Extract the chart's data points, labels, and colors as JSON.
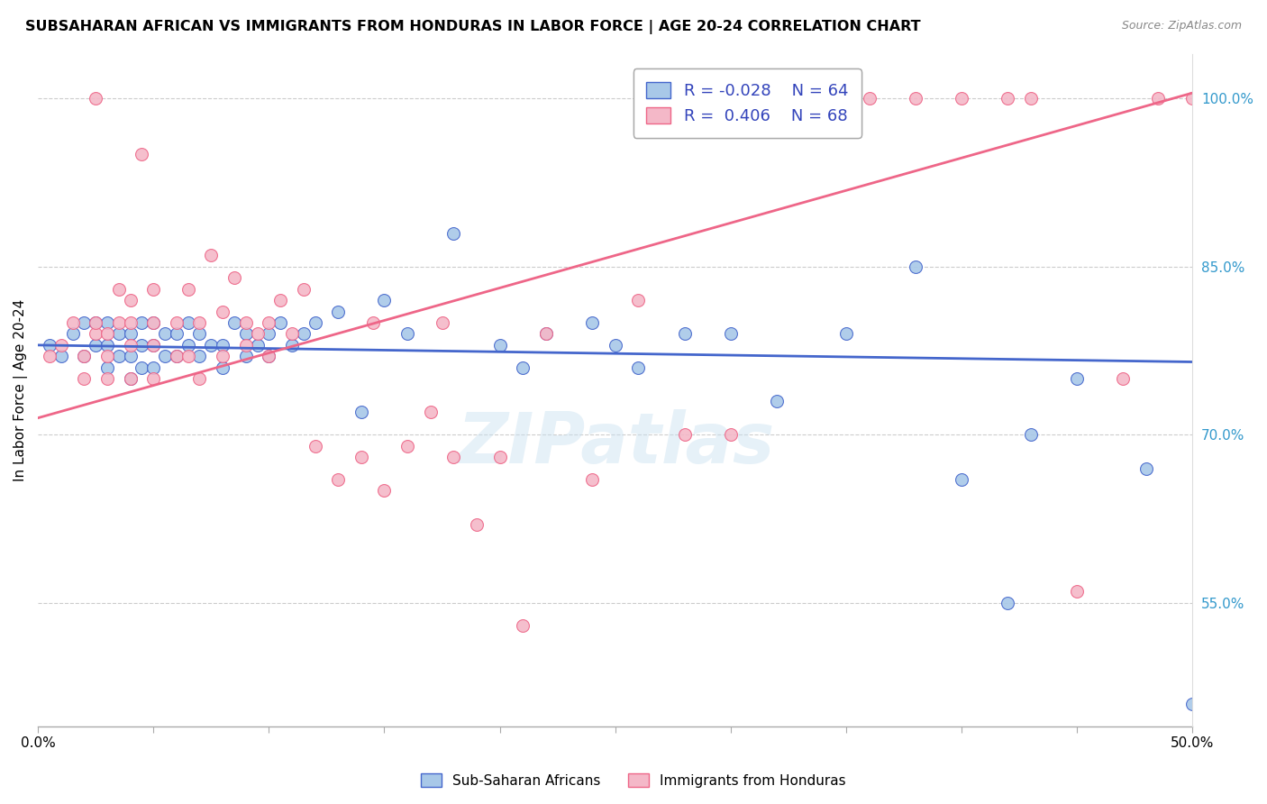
{
  "title": "SUBSAHARAN AFRICAN VS IMMIGRANTS FROM HONDURAS IN LABOR FORCE | AGE 20-24 CORRELATION CHART",
  "source": "Source: ZipAtlas.com",
  "ylabel": "In Labor Force | Age 20-24",
  "xlim": [
    0.0,
    0.5
  ],
  "ylim": [
    0.44,
    1.04
  ],
  "blue_R": "-0.028",
  "blue_N": "64",
  "pink_R": "0.406",
  "pink_N": "68",
  "blue_color": "#a8c8e8",
  "pink_color": "#f4b8c8",
  "blue_line_color": "#4466cc",
  "pink_line_color": "#ee6688",
  "legend_label_blue": "Sub-Saharan Africans",
  "legend_label_pink": "Immigrants from Honduras",
  "watermark": "ZIPatlas",
  "blue_scatter_x": [
    0.005,
    0.01,
    0.015,
    0.02,
    0.02,
    0.025,
    0.025,
    0.03,
    0.03,
    0.03,
    0.035,
    0.035,
    0.04,
    0.04,
    0.04,
    0.045,
    0.045,
    0.045,
    0.05,
    0.05,
    0.05,
    0.055,
    0.055,
    0.06,
    0.06,
    0.065,
    0.065,
    0.07,
    0.07,
    0.075,
    0.08,
    0.08,
    0.085,
    0.09,
    0.09,
    0.095,
    0.1,
    0.1,
    0.105,
    0.11,
    0.115,
    0.12,
    0.13,
    0.14,
    0.15,
    0.16,
    0.18,
    0.2,
    0.21,
    0.22,
    0.24,
    0.25,
    0.26,
    0.28,
    0.3,
    0.32,
    0.35,
    0.38,
    0.4,
    0.42,
    0.43,
    0.45,
    0.48,
    0.5
  ],
  "blue_scatter_y": [
    0.78,
    0.77,
    0.79,
    0.8,
    0.77,
    0.78,
    0.8,
    0.76,
    0.78,
    0.8,
    0.77,
    0.79,
    0.75,
    0.77,
    0.79,
    0.76,
    0.78,
    0.8,
    0.76,
    0.78,
    0.8,
    0.77,
    0.79,
    0.77,
    0.79,
    0.78,
    0.8,
    0.77,
    0.79,
    0.78,
    0.76,
    0.78,
    0.8,
    0.77,
    0.79,
    0.78,
    0.77,
    0.79,
    0.8,
    0.78,
    0.79,
    0.8,
    0.81,
    0.72,
    0.82,
    0.79,
    0.88,
    0.78,
    0.76,
    0.79,
    0.8,
    0.78,
    0.76,
    0.79,
    0.79,
    0.73,
    0.79,
    0.85,
    0.66,
    0.55,
    0.7,
    0.75,
    0.67,
    0.46
  ],
  "pink_scatter_x": [
    0.005,
    0.01,
    0.015,
    0.02,
    0.02,
    0.025,
    0.025,
    0.025,
    0.03,
    0.03,
    0.03,
    0.035,
    0.035,
    0.04,
    0.04,
    0.04,
    0.04,
    0.045,
    0.05,
    0.05,
    0.05,
    0.05,
    0.06,
    0.06,
    0.065,
    0.065,
    0.07,
    0.07,
    0.075,
    0.08,
    0.08,
    0.085,
    0.09,
    0.09,
    0.095,
    0.1,
    0.1,
    0.105,
    0.11,
    0.115,
    0.12,
    0.13,
    0.14,
    0.145,
    0.15,
    0.16,
    0.17,
    0.175,
    0.18,
    0.19,
    0.2,
    0.21,
    0.22,
    0.24,
    0.26,
    0.28,
    0.3,
    0.315,
    0.33,
    0.36,
    0.38,
    0.4,
    0.42,
    0.43,
    0.45,
    0.47,
    0.485,
    0.5
  ],
  "pink_scatter_y": [
    0.77,
    0.78,
    0.8,
    0.75,
    0.77,
    0.79,
    0.8,
    1.0,
    0.75,
    0.77,
    0.79,
    0.8,
    0.83,
    0.75,
    0.78,
    0.8,
    0.82,
    0.95,
    0.75,
    0.78,
    0.8,
    0.83,
    0.77,
    0.8,
    0.77,
    0.83,
    0.75,
    0.8,
    0.86,
    0.77,
    0.81,
    0.84,
    0.78,
    0.8,
    0.79,
    0.77,
    0.8,
    0.82,
    0.79,
    0.83,
    0.69,
    0.66,
    0.68,
    0.8,
    0.65,
    0.69,
    0.72,
    0.8,
    0.68,
    0.62,
    0.68,
    0.53,
    0.79,
    0.66,
    0.82,
    0.7,
    0.7,
    1.0,
    1.0,
    1.0,
    1.0,
    1.0,
    1.0,
    1.0,
    0.56,
    0.75,
    1.0,
    1.0
  ]
}
